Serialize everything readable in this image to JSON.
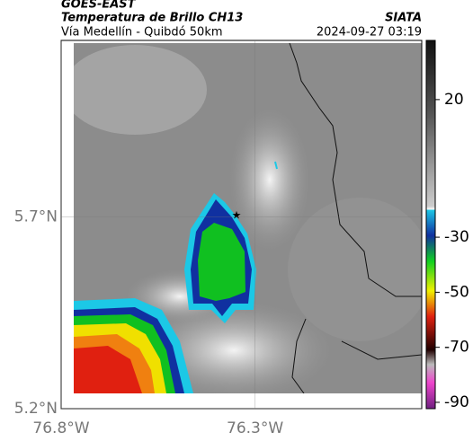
{
  "header": {
    "source": "GOES-EAST",
    "title": "Temperatura de Brillo CH13",
    "subtitle": "Vía Medellín - Quibdó 50km",
    "credit": "SIATA",
    "datetime": "2024-09-27 03:19"
  },
  "map": {
    "lat_lim": [
      5.2,
      6.16
    ],
    "lon_lim": [
      -76.8,
      -75.87
    ],
    "lat_ticks": [
      {
        "value": 5.7,
        "label": "5.7°N"
      },
      {
        "value": 5.2,
        "label": "5.2°N"
      }
    ],
    "lon_ticks": [
      {
        "value": -76.8,
        "label": "76.8°W"
      },
      {
        "value": -76.3,
        "label": "76.3°W"
      }
    ]
  },
  "colorbar": {
    "lim": [
      41.5,
      -92.3
    ],
    "ticks": [
      20,
      -30,
      -50,
      -70,
      -90
    ]
  }
}
